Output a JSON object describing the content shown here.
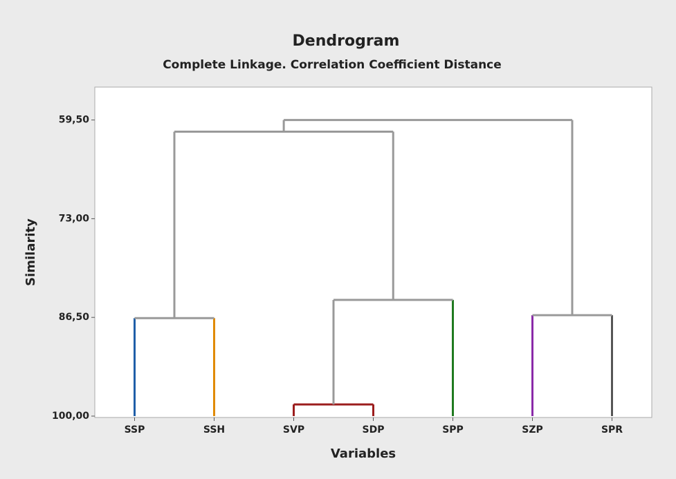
{
  "chart_data": {
    "type": "dendrogram",
    "title": "Dendrogram",
    "subtitle": "Complete Linkage. Correlation Coefficient Distance",
    "x_label": "Variables",
    "y_label": "Similarity",
    "categories": [
      "SSP",
      "SSH",
      "SVP",
      "SDP",
      "SPP",
      "SZP",
      "SPR"
    ],
    "colors": [
      "#1f5fa8",
      "#e08a00",
      "#9b1c1c",
      "#9b1c1c",
      "#1f7a1f",
      "#8a2aa8",
      "#555555"
    ],
    "merges": [
      {
        "left": 2,
        "right": 3,
        "similarity": 98.4,
        "color": "#9b1c1c"
      },
      {
        "left": 5,
        "right": 6,
        "similarity": 86.2,
        "color": "#999999"
      },
      {
        "left": 0,
        "right": 1,
        "similarity": 86.6,
        "color": "#999999"
      },
      {
        "left": 7,
        "right": 4,
        "similarity": 84.1,
        "color": "#999999"
      },
      {
        "left": 9,
        "right": 10,
        "similarity": 61.1,
        "color": "#999999"
      },
      {
        "left": 11,
        "right": 8,
        "similarity": 59.5,
        "color": "#999999"
      }
    ],
    "ylim": [
      100,
      55
    ],
    "yticks": [
      {
        "value": 59.5,
        "label": "59,50"
      },
      {
        "value": 73,
        "label": "73,00"
      },
      {
        "value": 86.5,
        "label": "86,50"
      },
      {
        "value": 100,
        "label": "100,00"
      }
    ]
  }
}
